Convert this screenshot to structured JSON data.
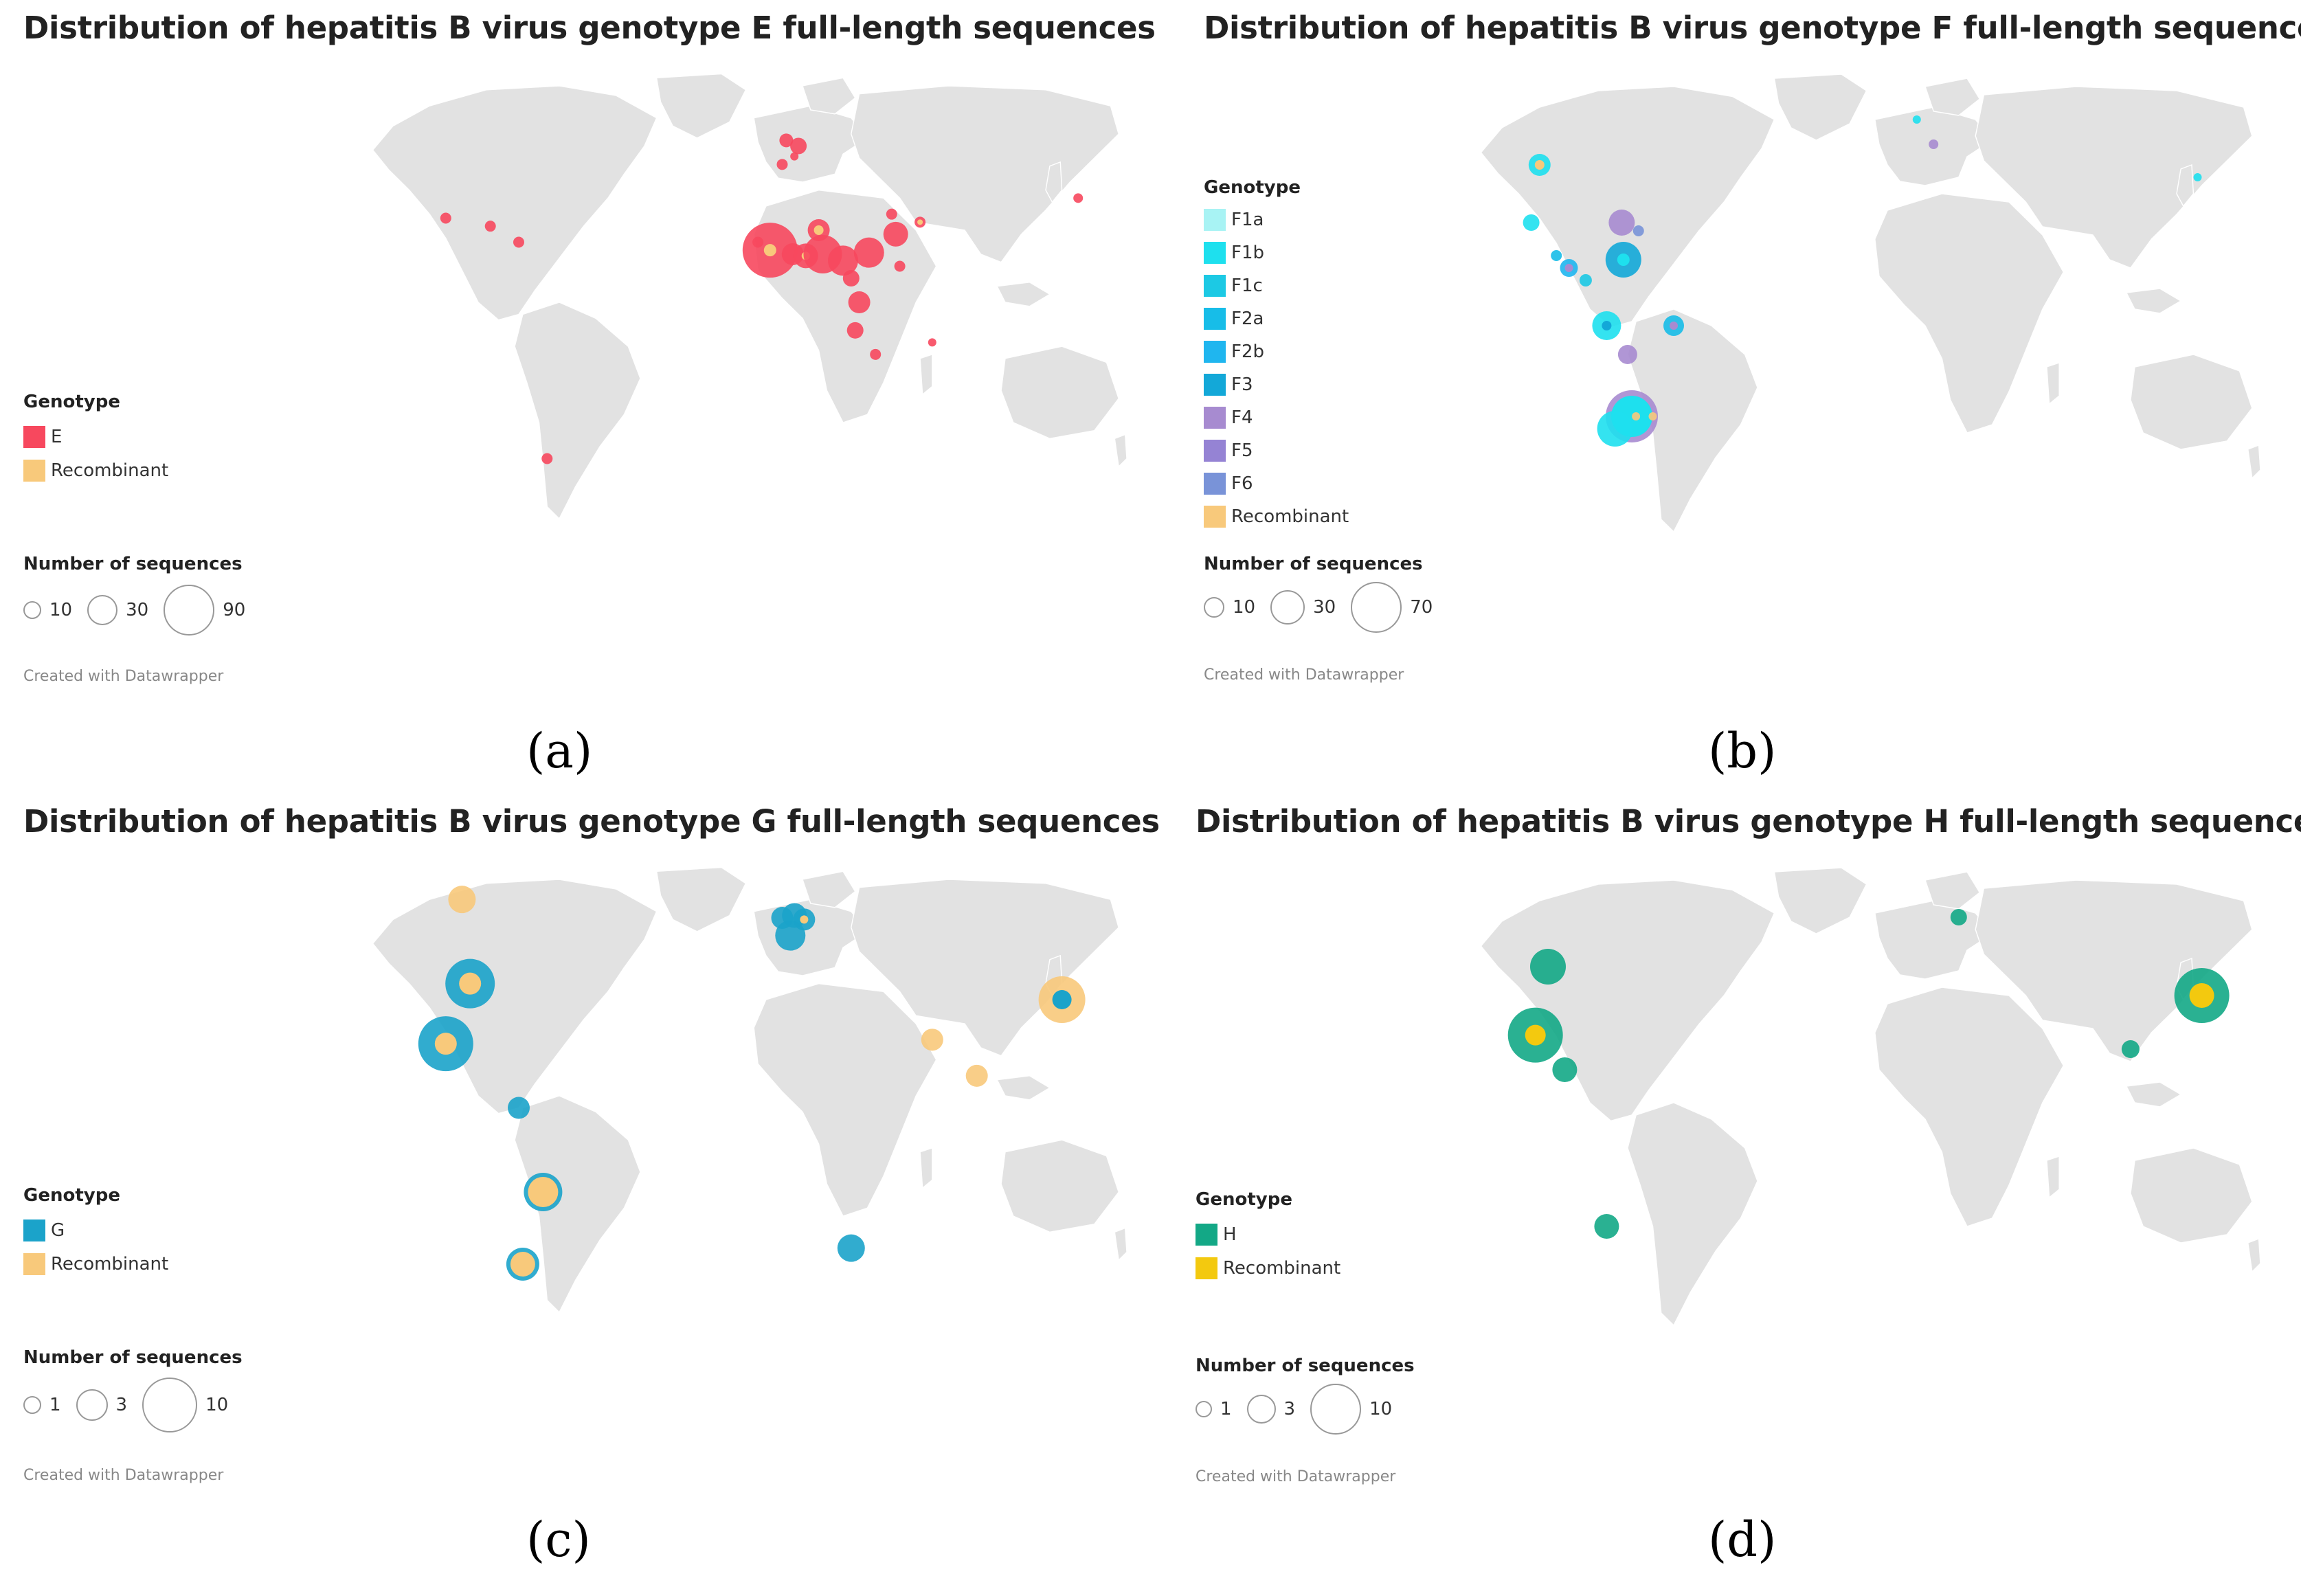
{
  "colors": {
    "land": "#e2e2e2",
    "border": "#ffffff",
    "E": "#f7485e",
    "recombinant_orange": "#f8c97b",
    "recombinant_yellow": "#f3c90f",
    "G": "#1ba3ca",
    "H": "#13a886",
    "F1a": "#a8f3f4",
    "F1b": "#1ee0ee",
    "F1c": "#1cc9e4",
    "F2a": "#17bde8",
    "F2b": "#1fb6ef",
    "F3": "#13a8d8",
    "F4": "#a78bd0",
    "F5": "#9583d4",
    "F6": "#7993d8"
  },
  "panels": [
    {
      "label": "(a)",
      "title": "Distribution of hepatitis B virus genotype E full-length sequences",
      "legend_title": "Genotype",
      "legend": [
        {
          "name": "E",
          "color": "#f7485e"
        },
        {
          "name": "Recombinant",
          "color": "#f8c97b"
        }
      ],
      "size_title": "Number of sequences",
      "sizes": [
        "10",
        "30",
        "90"
      ],
      "credit": "Created with Datawrapper",
      "chart_data": {
        "type": "bubble-map",
        "points": [
          {
            "place": "West Africa (Guinea region)",
            "genotype": "E",
            "count": 90,
            "recombinant": 5
          },
          {
            "place": "Ghana/Togo",
            "genotype": "E",
            "count": 20,
            "recombinant": 2
          },
          {
            "place": "Nigeria",
            "genotype": "E",
            "count": 30,
            "recombinant": 0
          },
          {
            "place": "Cameroon",
            "genotype": "E",
            "count": 20,
            "recombinant": 0
          },
          {
            "place": "Chad/Sudan",
            "genotype": "E",
            "count": 15,
            "recombinant": 0
          },
          {
            "place": "Niger",
            "genotype": "E",
            "count": 12,
            "recombinant": 4
          },
          {
            "place": "Angola",
            "genotype": "E",
            "count": 8,
            "recombinant": 0
          },
          {
            "place": "Namibia",
            "genotype": "E",
            "count": 5,
            "recombinant": 0
          },
          {
            "place": "South Africa",
            "genotype": "E",
            "count": 3,
            "recombinant": 0
          },
          {
            "place": "Sudan",
            "genotype": "E",
            "count": 10,
            "recombinant": 0
          },
          {
            "place": "Ethiopia",
            "genotype": "E",
            "count": 2,
            "recombinant": 2
          },
          {
            "place": "Madagascar",
            "genotype": "E",
            "count": 1,
            "recombinant": 0
          },
          {
            "place": "UK/France",
            "genotype": "E",
            "count": 4,
            "recombinant": 0
          },
          {
            "place": "Japan",
            "genotype": "E",
            "count": 1,
            "recombinant": 0
          },
          {
            "place": "Mexico",
            "genotype": "E",
            "count": 1,
            "recombinant": 0
          },
          {
            "place": "Haiti",
            "genotype": "E",
            "count": 2,
            "recombinant": 0
          },
          {
            "place": "Argentina",
            "genotype": "E",
            "count": 2,
            "recombinant": 0
          }
        ]
      }
    },
    {
      "label": "(b)",
      "title": "Distribution of hepatitis B virus genotype F full-length sequences",
      "legend_title": "Genotype",
      "legend": [
        {
          "name": "F1a",
          "color": "#a8f3f4"
        },
        {
          "name": "F1b",
          "color": "#1ee0ee"
        },
        {
          "name": "F1c",
          "color": "#1cc9e4"
        },
        {
          "name": "F2a",
          "color": "#17bde8"
        },
        {
          "name": "F2b",
          "color": "#1fb6ef"
        },
        {
          "name": "F3",
          "color": "#13a8d8"
        },
        {
          "name": "F4",
          "color": "#a78bd0"
        },
        {
          "name": "F5",
          "color": "#9583d4"
        },
        {
          "name": "F6",
          "color": "#7993d8"
        },
        {
          "name": "Recombinant",
          "color": "#f8c97b"
        }
      ],
      "size_title": "Number of sequences",
      "sizes": [
        "10",
        "30",
        "70"
      ],
      "credit": "Created with Datawrapper",
      "chart_data": {
        "type": "bubble-map",
        "points": [
          {
            "place": "USA",
            "genotype": "F1b/F2",
            "count": 6,
            "recombinant": 2
          },
          {
            "place": "Mexico",
            "genotype": "F1b",
            "count": 4
          },
          {
            "place": "Central America",
            "genotype": "F1c",
            "count": 3
          },
          {
            "place": "Venezuela",
            "genotype": "F3",
            "count": 30
          },
          {
            "place": "Colombia",
            "genotype": "F3",
            "count": 4
          },
          {
            "place": "Caribbean",
            "genotype": "F4",
            "count": 12
          },
          {
            "place": "Peru",
            "genotype": "F1b",
            "count": 20
          },
          {
            "place": "Brazil",
            "genotype": "F2a",
            "count": 8
          },
          {
            "place": "Bolivia",
            "genotype": "F4",
            "count": 8
          },
          {
            "place": "Argentina",
            "genotype": "F1b/F4",
            "count": 70,
            "recombinant": 3
          },
          {
            "place": "Chile",
            "genotype": "F1b",
            "count": 30
          },
          {
            "place": "UK",
            "genotype": "F1b",
            "count": 1
          },
          {
            "place": "France",
            "genotype": "F4",
            "count": 1
          },
          {
            "place": "Japan",
            "genotype": "F1b",
            "count": 1
          }
        ]
      }
    },
    {
      "label": "(c)",
      "title": "Distribution of hepatitis B virus genotype G full-length sequences",
      "legend_title": "Genotype",
      "legend": [
        {
          "name": "G",
          "color": "#1ba3ca"
        },
        {
          "name": "Recombinant",
          "color": "#f8c97b"
        }
      ],
      "size_title": "Number of sequences",
      "sizes": [
        "1",
        "3",
        "10"
      ],
      "credit": "Created with Datawrapper",
      "chart_data": {
        "type": "bubble-map",
        "points": [
          {
            "place": "Canada",
            "genotype": "Recombinant",
            "count": 2
          },
          {
            "place": "USA",
            "genotype": "G",
            "count": 8,
            "recombinant": 3
          },
          {
            "place": "Mexico",
            "genotype": "G",
            "count": 10,
            "recombinant": 3
          },
          {
            "place": "Colombia",
            "genotype": "G",
            "count": 1
          },
          {
            "place": "Brazil",
            "genotype": "G",
            "count": 4,
            "recombinant": 3
          },
          {
            "place": "Argentina",
            "genotype": "G",
            "count": 3,
            "recombinant": 3
          },
          {
            "place": "France",
            "genotype": "G",
            "count": 6
          },
          {
            "place": "Germany",
            "genotype": "G",
            "count": 3,
            "recombinant": 1
          },
          {
            "place": "India",
            "genotype": "Recombinant",
            "count": 1
          },
          {
            "place": "Thailand",
            "genotype": "Recombinant",
            "count": 1
          },
          {
            "place": "Japan",
            "genotype": "G",
            "count": 6,
            "recombinant": 5
          },
          {
            "place": "South Africa",
            "genotype": "G",
            "count": 2
          }
        ]
      }
    },
    {
      "label": "(d)",
      "title": "Distribution of hepatitis B virus genotype H full-length sequences",
      "legend_title": "Genotype",
      "legend": [
        {
          "name": "H",
          "color": "#13a886"
        },
        {
          "name": "Recombinant",
          "color": "#f3c90f"
        }
      ],
      "size_title": "Number of sequences",
      "sizes": [
        "1",
        "3",
        "10"
      ],
      "credit": "Created with Datawrapper",
      "chart_data": {
        "type": "bubble-map",
        "points": [
          {
            "place": "USA",
            "genotype": "H",
            "count": 5
          },
          {
            "place": "Mexico",
            "genotype": "H",
            "count": 10,
            "recombinant": 2
          },
          {
            "place": "Nicaragua",
            "genotype": "H",
            "count": 2
          },
          {
            "place": "Argentina",
            "genotype": "H",
            "count": 2
          },
          {
            "place": "Germany",
            "genotype": "H",
            "count": 1
          },
          {
            "place": "Japan",
            "genotype": "H",
            "count": 9,
            "recombinant": 3
          },
          {
            "place": "Thailand",
            "genotype": "H",
            "count": 1
          }
        ]
      }
    }
  ]
}
